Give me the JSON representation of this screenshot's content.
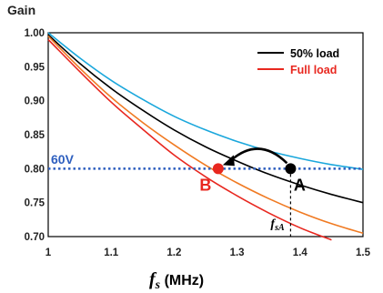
{
  "chart_data": {
    "type": "line",
    "title": "",
    "ylabel": "Gain",
    "xlabel_symbol": "f",
    "xlabel_subscript": "s",
    "xlabel_unit": " (MHz)",
    "xlim": [
      1.0,
      1.5
    ],
    "ylim": [
      0.7,
      1.0
    ],
    "x_ticks": [
      1.0,
      1.1,
      1.2,
      1.3,
      1.4,
      1.5
    ],
    "x_tick_labels": [
      "1",
      "1.1",
      "1.2",
      "1.3",
      "1.4",
      "1.5"
    ],
    "y_ticks": [
      0.7,
      0.75,
      0.8,
      0.85,
      0.9,
      0.95,
      1.0
    ],
    "y_tick_labels": [
      "0.70",
      "0.75",
      "0.80",
      "0.85",
      "0.90",
      "0.95",
      "1.00"
    ],
    "grid": false,
    "legend_position": "top-right",
    "legend": [
      {
        "label": "50% load",
        "color": "#000000"
      },
      {
        "label": "Full load",
        "color": "#e8271f"
      }
    ],
    "series": [
      {
        "color": "#1aa7dc",
        "x": [
          1.0,
          1.05,
          1.1,
          1.15,
          1.2,
          1.25,
          1.3,
          1.35,
          1.4,
          1.45,
          1.5
        ],
        "values": [
          1.0,
          0.963,
          0.93,
          0.902,
          0.877,
          0.857,
          0.84,
          0.826,
          0.815,
          0.806,
          0.799
        ]
      },
      {
        "name": "50% load",
        "color": "#000000",
        "x": [
          1.0,
          1.05,
          1.1,
          1.15,
          1.2,
          1.25,
          1.3,
          1.35,
          1.4,
          1.45,
          1.5
        ],
        "values": [
          0.997,
          0.955,
          0.918,
          0.886,
          0.857,
          0.832,
          0.811,
          0.792,
          0.776,
          0.762,
          0.75
        ]
      },
      {
        "color": "#f07a22",
        "x": [
          1.0,
          1.05,
          1.1,
          1.15,
          1.2,
          1.25,
          1.3,
          1.35,
          1.4,
          1.45,
          1.5
        ],
        "values": [
          0.995,
          0.948,
          0.905,
          0.868,
          0.835,
          0.805,
          0.779,
          0.756,
          0.736,
          0.719,
          0.705
        ]
      },
      {
        "name": "Full load",
        "color": "#e8271f",
        "x": [
          1.0,
          1.05,
          1.1,
          1.15,
          1.2,
          1.25,
          1.3,
          1.35,
          1.4,
          1.45
        ],
        "values": [
          0.99,
          0.943,
          0.898,
          0.858,
          0.82,
          0.788,
          0.76,
          0.735,
          0.713,
          0.695
        ]
      }
    ],
    "reference_line": {
      "label": "60V",
      "y": 0.8,
      "color": "#2e5fbf"
    },
    "points": [
      {
        "label": "A",
        "x": 1.385,
        "y": 0.8,
        "color": "#000000"
      },
      {
        "label": "B",
        "x": 1.27,
        "y": 0.8,
        "color": "#e8271f"
      }
    ],
    "fsA": {
      "symbol": "f",
      "subscript": "sA",
      "x": 1.385
    }
  }
}
